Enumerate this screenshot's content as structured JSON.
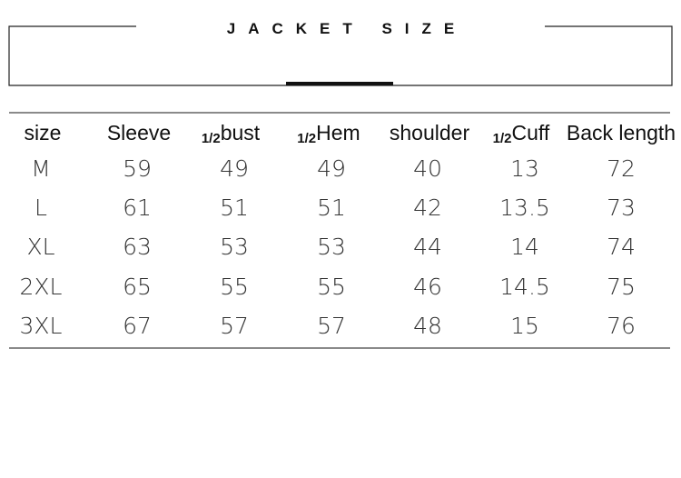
{
  "header": {
    "title": "JACKET SIZE"
  },
  "table": {
    "columns": [
      {
        "label": "size"
      },
      {
        "label": "Sleeve"
      },
      {
        "prefix": "1/2",
        "label": "bust"
      },
      {
        "prefix": "1/2",
        "label": "Hem"
      },
      {
        "label": "shoulder"
      },
      {
        "prefix": "1/2",
        "label": "Cuff"
      },
      {
        "label": "Back length"
      }
    ],
    "rows": [
      [
        "M",
        59,
        49,
        49,
        40,
        13,
        72
      ],
      [
        "L",
        61,
        51,
        51,
        42,
        13.5,
        73
      ],
      [
        "XL",
        63,
        53,
        53,
        44,
        14,
        74
      ],
      [
        "2XL",
        65,
        55,
        55,
        46,
        14.5,
        75
      ],
      [
        "3XL",
        67,
        57,
        57,
        48,
        15,
        76
      ]
    ]
  }
}
